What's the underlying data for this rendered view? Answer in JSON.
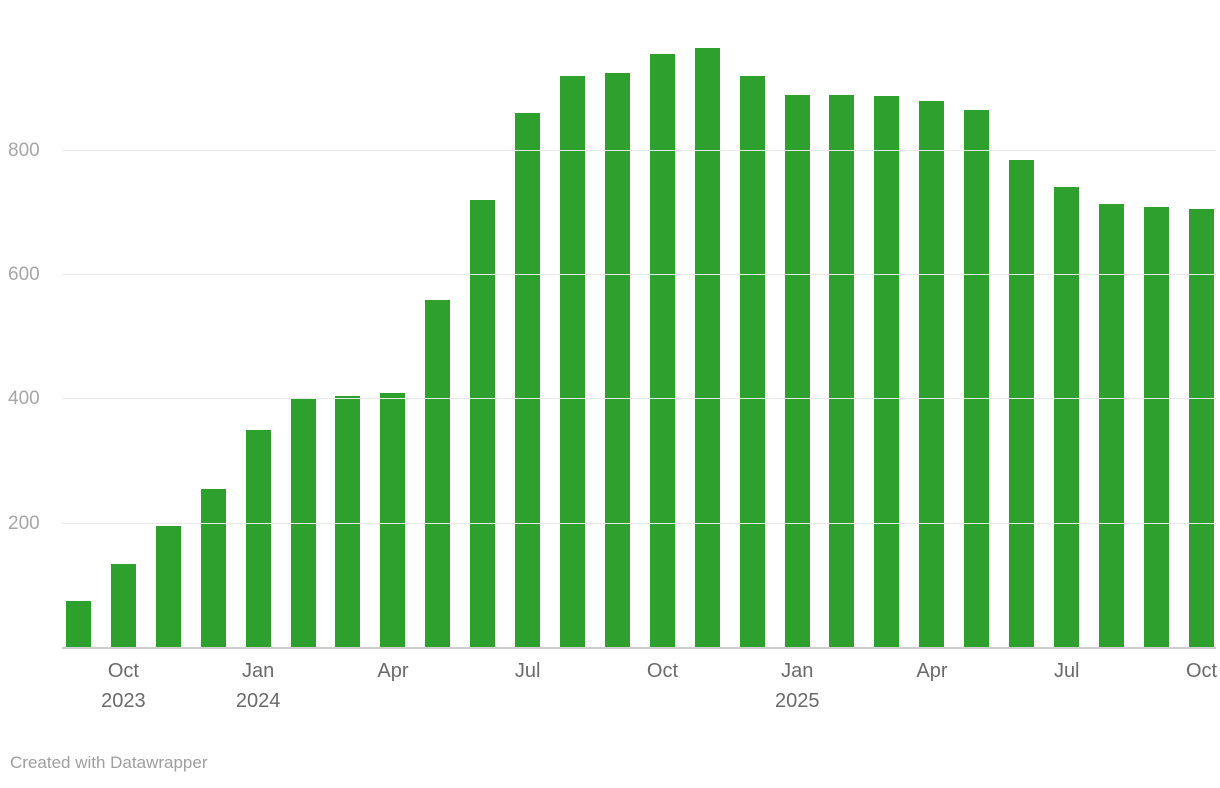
{
  "footer": {
    "credit": "Created with Datawrapper"
  },
  "chart_data": {
    "type": "bar",
    "title": "",
    "xlabel": "",
    "ylabel": "",
    "bar_color": "#2da02d",
    "grid": true,
    "ylim": [
      0,
      1020
    ],
    "yticks": [
      200,
      400,
      600,
      800
    ],
    "categories": [
      "Sep 2023",
      "Oct 2023",
      "Nov 2023",
      "Dec 2023",
      "Jan 2024",
      "Feb 2024",
      "Mar 2024",
      "Apr 2024",
      "May 2024",
      "Jun 2024",
      "Jul 2024",
      "Aug 2024",
      "Sep 2024",
      "Oct 2024",
      "Nov 2024",
      "Dec 2024",
      "Jan 2025",
      "Feb 2025",
      "Mar 2025",
      "Apr 2025",
      "May 2025",
      "Jun 2025",
      "Jul 2025",
      "Aug 2025",
      "Sep 2025",
      "Oct 2025"
    ],
    "values": [
      75,
      135,
      197,
      255,
      350,
      400,
      405,
      410,
      560,
      720,
      860,
      920,
      925,
      955,
      965,
      920,
      890,
      890,
      888,
      880,
      865,
      785,
      742,
      715,
      710,
      707
    ],
    "x_ticks": [
      {
        "index": 1,
        "label": "Oct",
        "year": "2023"
      },
      {
        "index": 4,
        "label": "Jan",
        "year": "2024"
      },
      {
        "index": 7,
        "label": "Apr",
        "year": ""
      },
      {
        "index": 10,
        "label": "Jul",
        "year": ""
      },
      {
        "index": 13,
        "label": "Oct",
        "year": ""
      },
      {
        "index": 16,
        "label": "Jan",
        "year": "2025"
      },
      {
        "index": 19,
        "label": "Apr",
        "year": ""
      },
      {
        "index": 22,
        "label": "Jul",
        "year": ""
      },
      {
        "index": 25,
        "label": "Oct",
        "year": ""
      }
    ]
  }
}
